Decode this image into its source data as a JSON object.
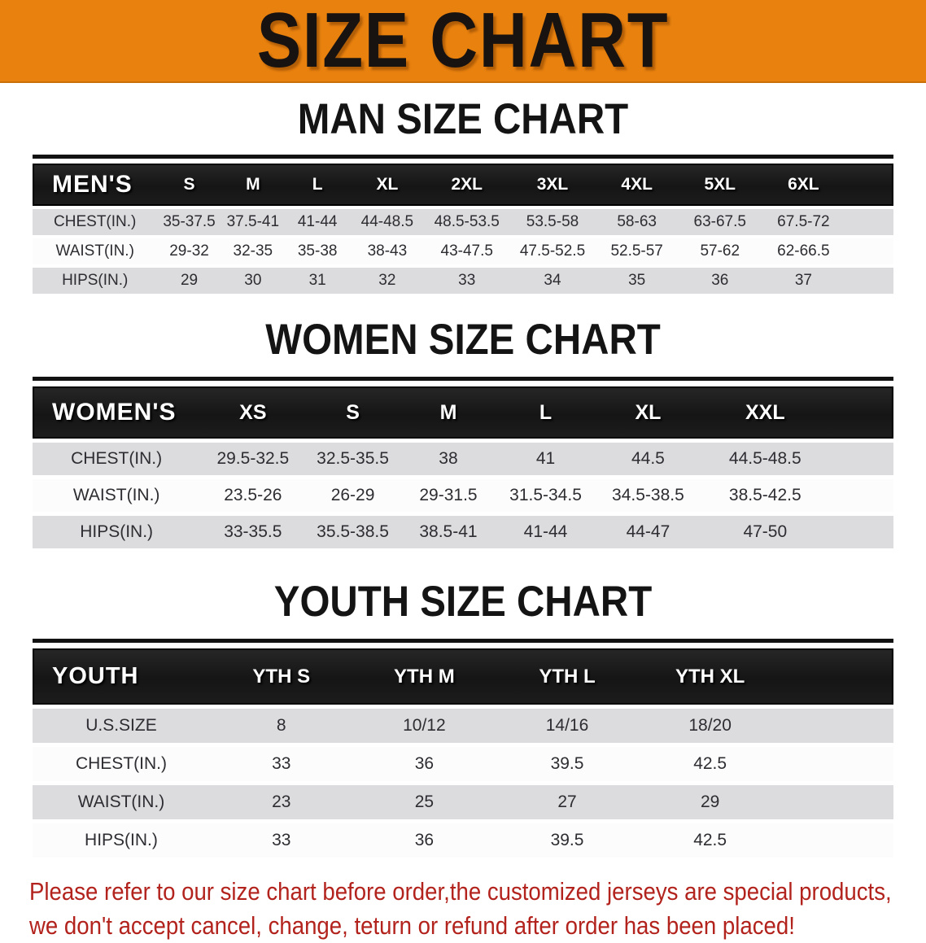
{
  "banner": {
    "title": "SIZE CHART"
  },
  "sections": [
    {
      "title": "MAN SIZE CHART",
      "corner_label": "MEN'S",
      "columns": [
        "S",
        "M",
        "L",
        "XL",
        "2XL",
        "3XL",
        "4XL",
        "5XL",
        "6XL"
      ],
      "rows": [
        {
          "label": "CHEST(IN.)",
          "values": [
            "35-37.5",
            "37.5-41",
            "41-44",
            "44-48.5",
            "48.5-53.5",
            "53.5-58",
            "58-63",
            "63-67.5",
            "67.5-72"
          ]
        },
        {
          "label": "WAIST(IN.)",
          "values": [
            "29-32",
            "32-35",
            "35-38",
            "38-43",
            "43-47.5",
            "47.5-52.5",
            "52.5-57",
            "57-62",
            "62-66.5"
          ]
        },
        {
          "label": "HIPS(IN.)",
          "values": [
            "29",
            "30",
            "31",
            "32",
            "33",
            "34",
            "35",
            "36",
            "37"
          ]
        }
      ]
    },
    {
      "title": "WOMEN SIZE CHART",
      "corner_label": "WOMEN'S",
      "columns": [
        "XS",
        "S",
        "M",
        "L",
        "XL",
        "XXL"
      ],
      "rows": [
        {
          "label": "CHEST(IN.)",
          "values": [
            "29.5-32.5",
            "32.5-35.5",
            "38",
            "41",
            "44.5",
            "44.5-48.5"
          ]
        },
        {
          "label": "WAIST(IN.)",
          "values": [
            "23.5-26",
            "26-29",
            "29-31.5",
            "31.5-34.5",
            "34.5-38.5",
            "38.5-42.5"
          ]
        },
        {
          "label": "HIPS(IN.)",
          "values": [
            "33-35.5",
            "35.5-38.5",
            "38.5-41",
            "41-44",
            "44-47",
            "47-50"
          ]
        }
      ]
    },
    {
      "title": "YOUTH SIZE CHART",
      "corner_label": "YOUTH",
      "columns": [
        "YTH S",
        "YTH M",
        "YTH L",
        "YTH XL"
      ],
      "rows": [
        {
          "label": "U.S.SIZE",
          "values": [
            "8",
            "10/12",
            "14/16",
            "18/20"
          ]
        },
        {
          "label": "CHEST(IN.)",
          "values": [
            "33",
            "36",
            "39.5",
            "42.5"
          ]
        },
        {
          "label": "WAIST(IN.)",
          "values": [
            "23",
            "25",
            "27",
            "29"
          ]
        },
        {
          "label": "HIPS(IN.)",
          "values": [
            "33",
            "36",
            "39.5",
            "42.5"
          ]
        }
      ]
    }
  ],
  "disclaimer": {
    "lines": [
      "Please refer to our size chart before order,the customized jerseys are special products,",
      "we don't accept cancel, change, teturn or refund after order has been placed!"
    ]
  },
  "colors": {
    "banner_orange": "#E8810E",
    "banner_text": "#181310",
    "header_black": "#1A1A1A",
    "row_gray": "#DCDCDE",
    "row_white": "#FCFCFC",
    "cell_text": "#2D2D32",
    "title_black": "#141414",
    "disclaimer_red": "#B3231D"
  }
}
